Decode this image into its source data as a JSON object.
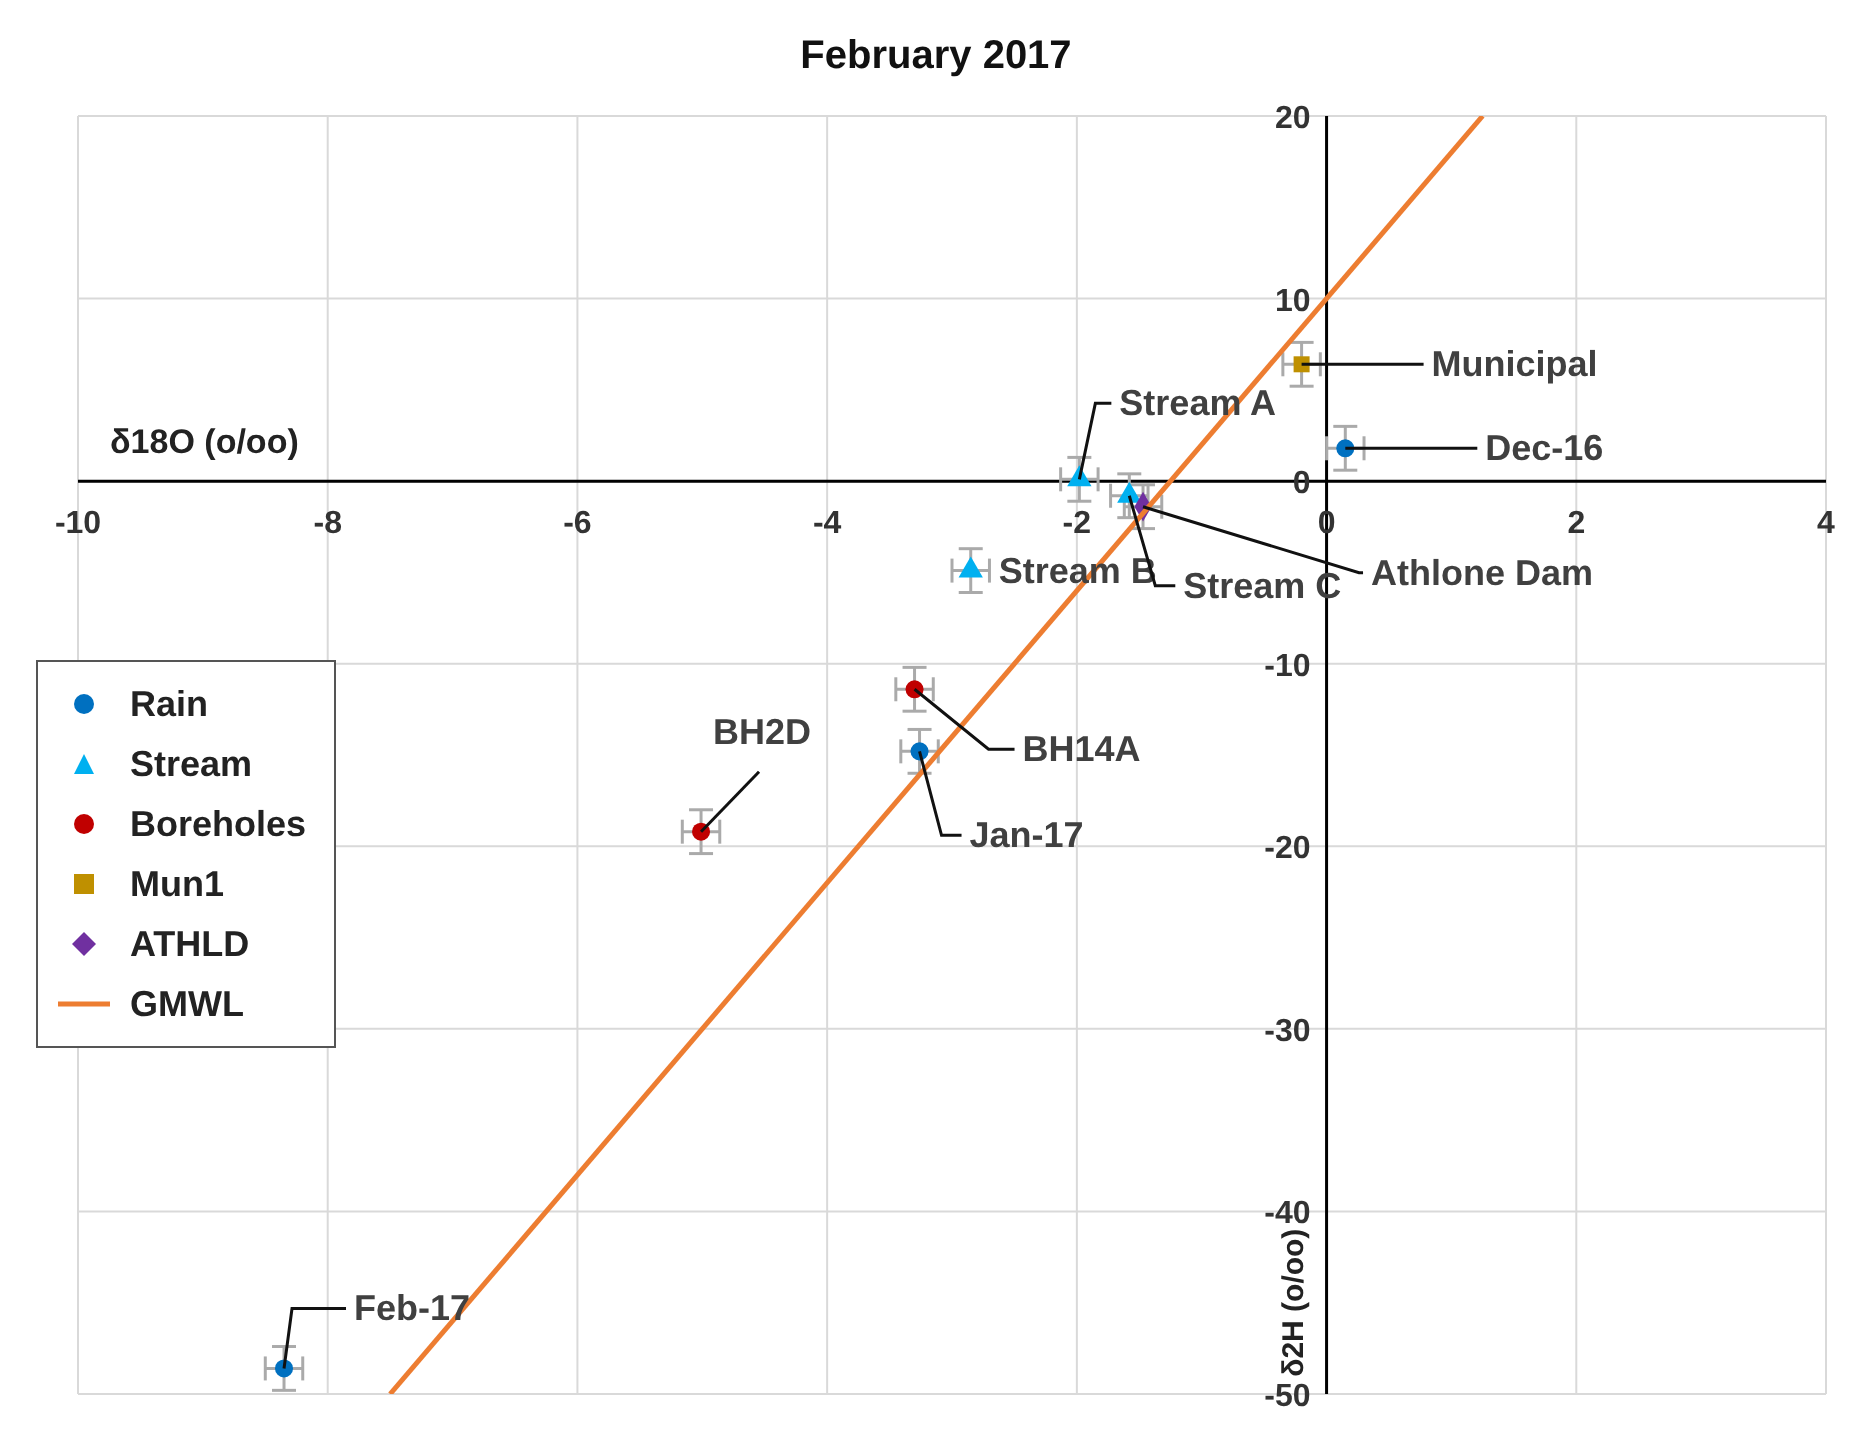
{
  "chart_data": {
    "type": "scatter",
    "title": "February 2017",
    "xlabel": "δ18O (o/oo)",
    "ylabel": "δ2H (o/oo)",
    "xlim": [
      -10,
      4
    ],
    "xticks": [
      -10,
      -8,
      -6,
      -4,
      -2,
      0,
      2,
      4
    ],
    "ylim": [
      -50,
      20
    ],
    "yticks": [
      -50,
      -40,
      -30,
      -20,
      -10,
      0,
      10,
      20
    ],
    "grid": true,
    "legend": "left",
    "series": [
      {
        "name": "Rain",
        "type": "scatter",
        "marker": "circle",
        "color": "#0070c0",
        "x": [
          0.15,
          -3.26,
          -8.35
        ],
        "values": [
          1.8,
          -14.8,
          -48.6
        ],
        "errors": [
          1.2,
          1.2,
          1.2
        ],
        "xerrors": [
          0.15,
          0.15,
          0.15
        ]
      },
      {
        "name": "Stream",
        "type": "scatter",
        "marker": "triangle",
        "color": "#00b0f0",
        "x": [
          -1.98,
          -2.85,
          -1.58
        ],
        "values": [
          0.1,
          -4.9,
          -0.8
        ],
        "errors": [
          1.2,
          1.2,
          1.2
        ],
        "xerrors": [
          0.15,
          0.15,
          0.15
        ]
      },
      {
        "name": "Boreholes",
        "type": "scatter",
        "marker": "circle",
        "color": "#c00000",
        "x": [
          -5.01,
          -3.3
        ],
        "values": [
          -19.2,
          -11.4
        ],
        "errors": [
          1.2,
          1.2
        ],
        "xerrors": [
          0.15,
          0.15
        ]
      },
      {
        "name": "Mun1",
        "type": "scatter",
        "marker": "square",
        "color": "#bf9000",
        "x": [
          -0.2
        ],
        "values": [
          6.4
        ],
        "errors": [
          1.2
        ],
        "xerrors": [
          0.15
        ]
      },
      {
        "name": "ATHLD",
        "type": "scatter",
        "marker": "diamond",
        "color": "#7030a0",
        "x": [
          -1.47
        ],
        "values": [
          -1.4
        ],
        "errors": [
          1.2
        ],
        "xerrors": [
          0.15
        ]
      },
      {
        "name": "GMWL",
        "type": "line",
        "marker": "none",
        "color": "#ed7d31",
        "x": [
          -7.5,
          1.25
        ],
        "values": [
          -50,
          20
        ]
      }
    ],
    "annotations": [
      {
        "text": "Stream A",
        "x": -1.98,
        "y": 0.1
      },
      {
        "text": "Stream B",
        "x": -2.85,
        "y": -4.9
      },
      {
        "text": "Stream C",
        "x": -1.58,
        "y": -0.8
      },
      {
        "text": "Athlone Dam",
        "x": -1.47,
        "y": -1.4
      },
      {
        "text": "Municipal",
        "x": -0.2,
        "y": 6.4
      },
      {
        "text": "Dec-16",
        "x": 0.15,
        "y": 1.8
      },
      {
        "text": "BH14A",
        "x": -3.3,
        "y": -11.4
      },
      {
        "text": "Jan-17",
        "x": -3.26,
        "y": -14.8
      },
      {
        "text": "BH2D",
        "x": -5.01,
        "y": -19.2
      },
      {
        "text": "Feb-17",
        "x": -8.35,
        "y": -48.6
      }
    ]
  }
}
